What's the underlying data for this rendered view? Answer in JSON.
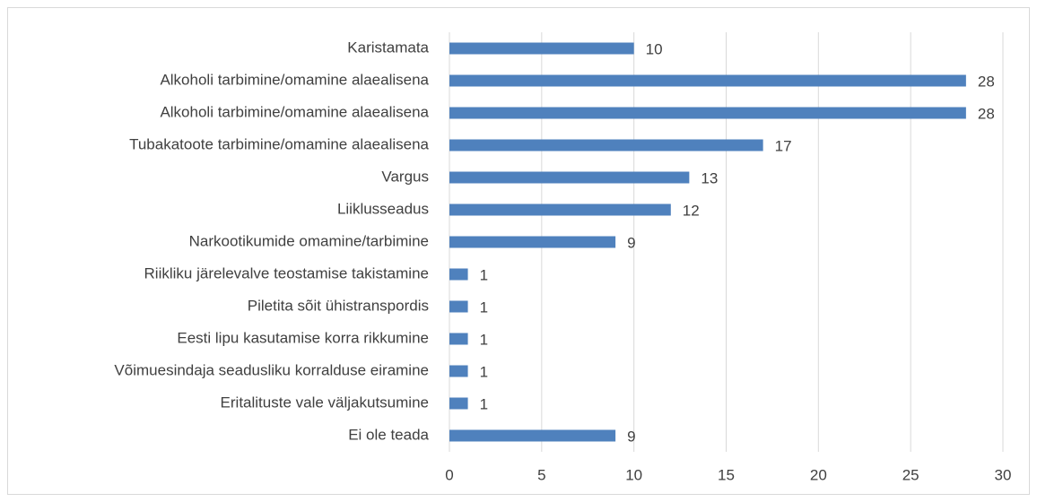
{
  "chart_data": {
    "type": "bar",
    "orientation": "horizontal",
    "categories": [
      "Karistamata",
      "Alkoholi tarbimine/omamine alaealisena",
      "Alkoholi tarbimine/omamine alaealisena",
      "Tubakatoote tarbimine/omamine alaealisena",
      "Vargus",
      "Liiklusseadus",
      "Narkootikumide omamine/tarbimine",
      "Riikliku järelevalve teostamise takistamine",
      "Piletita sõit ühistranspordis",
      "Eesti lipu kasutamise korra rikkumine",
      "Võimuesindaja seadusliku korralduse eiramine",
      "Eritalituste vale väljakutsumine",
      "Ei ole teada"
    ],
    "values": [
      10,
      28,
      28,
      17,
      13,
      12,
      9,
      1,
      1,
      1,
      1,
      1,
      9
    ],
    "color": "#4f81bd",
    "xlim": [
      0,
      30
    ],
    "xticks": [
      0,
      5,
      10,
      15,
      20,
      25,
      30
    ],
    "grid": true
  }
}
